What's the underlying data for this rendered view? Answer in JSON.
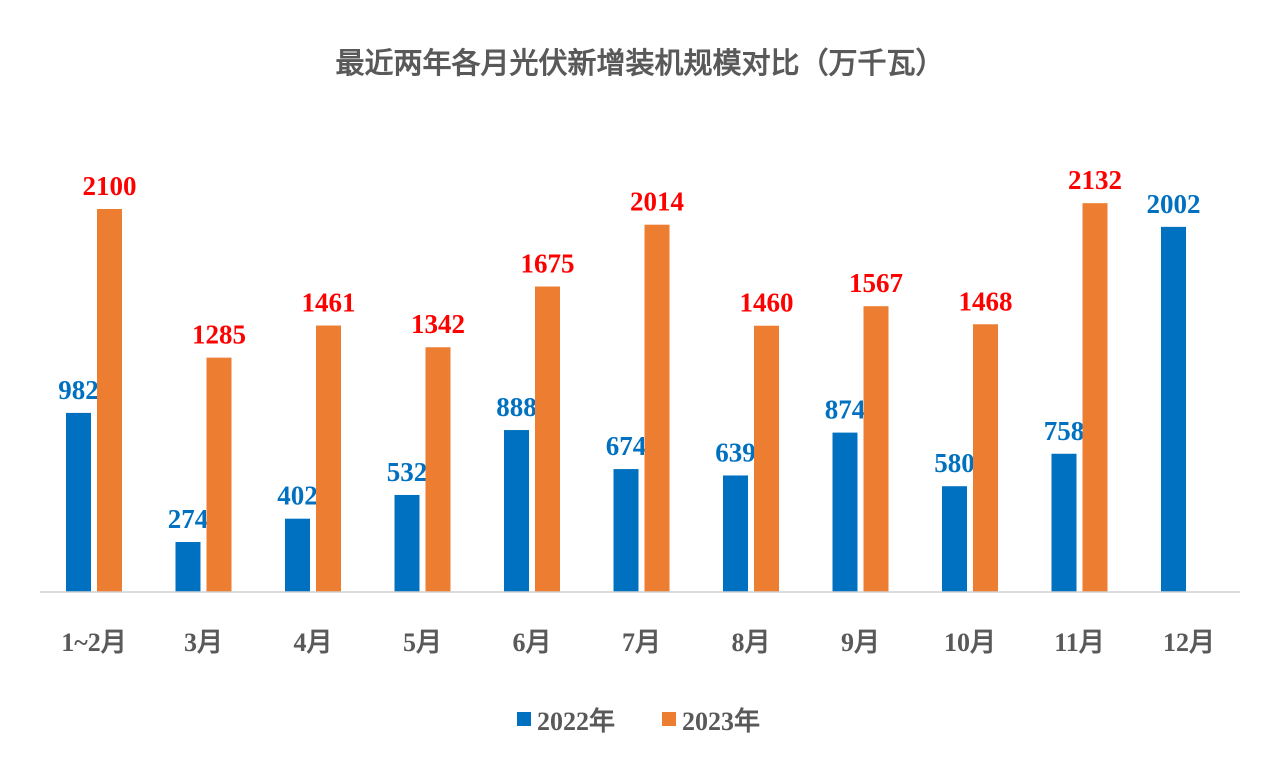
{
  "chart_data": {
    "type": "bar",
    "title": "最近两年各月光伏新增装机规模对比（万千瓦）",
    "categories": [
      "1~2月",
      "3月",
      "4月",
      "5月",
      "6月",
      "7月",
      "8月",
      "9月",
      "10月",
      "11月",
      "12月"
    ],
    "series": [
      {
        "name": "2022年",
        "color": "#0070C0",
        "label_color": "#0070C0",
        "values": [
          982,
          274,
          402,
          532,
          888,
          674,
          639,
          874,
          580,
          758,
          2002
        ]
      },
      {
        "name": "2023年",
        "color": "#ED7D31",
        "label_color": "#FF0000",
        "values": [
          2100,
          1285,
          1461,
          1342,
          1675,
          2014,
          1460,
          1567,
          1468,
          2132,
          null
        ]
      }
    ],
    "ylim": [
      0,
      2200
    ],
    "grid": false,
    "legend": "bottom",
    "data_labels": true
  }
}
